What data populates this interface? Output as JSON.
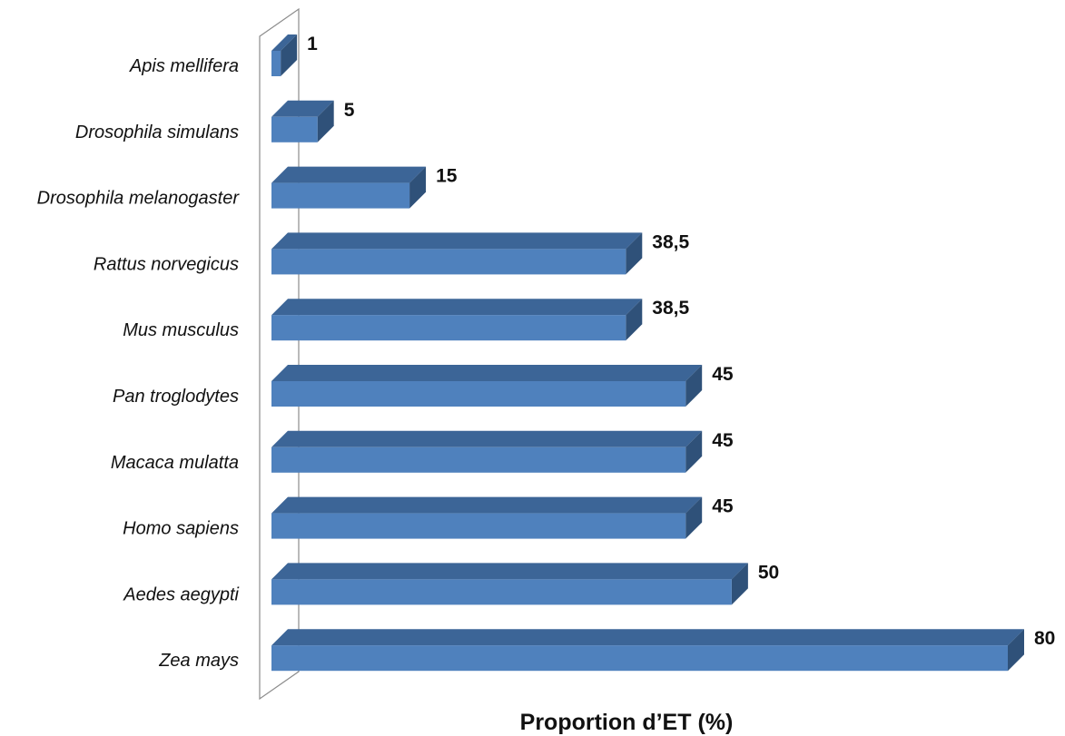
{
  "chart_data": {
    "type": "bar",
    "orientation": "horizontal",
    "three_d": true,
    "categories": [
      "Apis mellifera",
      "Drosophila simulans",
      "Drosophila melanogaster",
      "Rattus norvegicus",
      "Mus musculus",
      "Pan troglodytes",
      "Macaca mulatta",
      "Homo sapiens",
      "Aedes aegypti",
      "Zea mays"
    ],
    "values": [
      1,
      5,
      15,
      38.5,
      38.5,
      45,
      45,
      45,
      50,
      80
    ],
    "value_labels": [
      "1",
      "5",
      "15",
      "38,5",
      "38,5",
      "45",
      "45",
      "45",
      "50",
      "80"
    ],
    "xlabel": "Proportion d’ET (%)",
    "ylabel": "",
    "xlim": [
      0,
      80
    ],
    "grid": false,
    "legend": "none",
    "colors": {
      "bar_front": "#4f81bd",
      "bar_top": "#3c6597",
      "bar_side": "#2f5179",
      "wall": "#8c8c8c"
    }
  }
}
